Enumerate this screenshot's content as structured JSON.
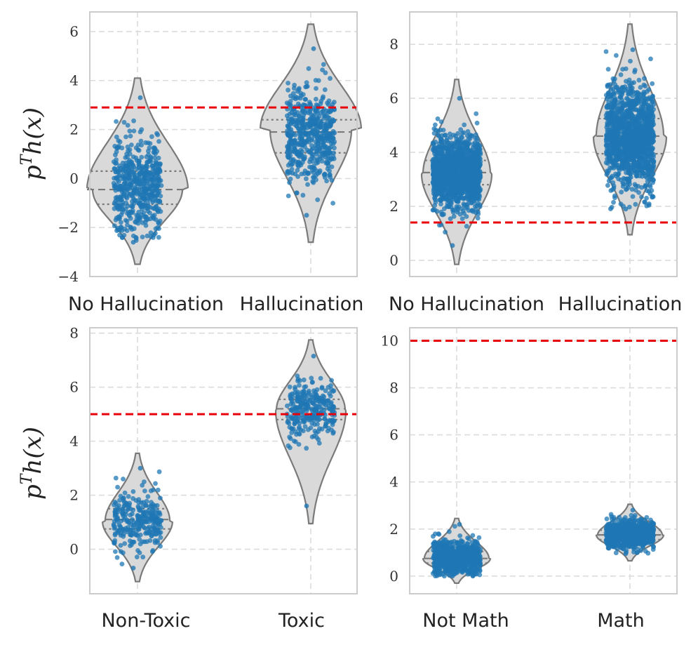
{
  "figure": {
    "layout": "2x2 grid of violin plots with jittered points"
  },
  "colors": {
    "points": "#1f77b4",
    "violin_fill": "#d9d9d9",
    "violin_edge": "#7a7a7a",
    "threshold": "#e8000b",
    "grid": "#dcdcdc",
    "frame": "#cccccc"
  },
  "chart_data": [
    {
      "type": "violin",
      "panel": "top-left",
      "title": "",
      "ylabel": "p^T h(x)",
      "ylabel_base": "p",
      "ylabel_sup": "T",
      "ylabel_func": "h(x)",
      "ylim": [
        -4,
        6.8
      ],
      "yticks": [
        -4,
        -2,
        0,
        2,
        4,
        6
      ],
      "ytick_labels": [
        "−4",
        "−2",
        "0",
        "2",
        "4",
        "6"
      ],
      "grid": true,
      "categories": [
        "No Hallucination",
        "Hallucination"
      ],
      "threshold": 2.9,
      "series": [
        {
          "name": "No Hallucination",
          "min": -3.5,
          "max": 4.1,
          "q1": -1.05,
          "median": -0.45,
          "q3": 0.3,
          "mode": -0.45,
          "points_min": -2.6,
          "points_max": 3.3,
          "n_points": 520
        },
        {
          "name": "Hallucination",
          "min": -2.6,
          "max": 6.3,
          "q1": 1.05,
          "median": 1.9,
          "q3": 2.4,
          "mode": 2.0,
          "points_min": -1.5,
          "points_max": 5.3,
          "n_points": 520
        }
      ]
    },
    {
      "type": "violin",
      "panel": "top-right",
      "title": "",
      "ylabel": "",
      "ylim": [
        -0.6,
        9.2
      ],
      "yticks": [
        0,
        2,
        4,
        6,
        8
      ],
      "ytick_labels": [
        "0",
        "2",
        "4",
        "6",
        "8"
      ],
      "grid": true,
      "categories": [
        "No Hallucination",
        "Hallucination"
      ],
      "threshold": 1.4,
      "series": [
        {
          "name": "No Hallucination",
          "min": -0.15,
          "max": 6.7,
          "q1": 2.8,
          "median": 3.25,
          "q3": 3.7,
          "mode": 3.2,
          "points_min": 0.55,
          "points_max": 6.0,
          "n_points": 1300
        },
        {
          "name": "Hallucination",
          "min": 0.95,
          "max": 8.75,
          "q1": 3.95,
          "median": 4.6,
          "q3": 5.25,
          "mode": 4.6,
          "points_min": 1.9,
          "points_max": 7.8,
          "n_points": 1300
        }
      ]
    },
    {
      "type": "violin",
      "panel": "bottom-left",
      "title": "",
      "ylabel": "p^T h(x)",
      "ylabel_base": "p",
      "ylabel_sup": "T",
      "ylabel_func": "h(x)",
      "ylim": [
        -1.65,
        8.2
      ],
      "yticks": [
        0,
        2,
        4,
        6,
        8
      ],
      "ytick_labels": [
        "0",
        "2",
        "4",
        "6",
        "8"
      ],
      "grid": true,
      "categories": [
        "Non-Toxic",
        "Toxic"
      ],
      "threshold": 5.0,
      "series": [
        {
          "name": "Non-Toxic",
          "min": -1.2,
          "max": 3.55,
          "q1": 0.75,
          "median": 1.1,
          "q3": 1.5,
          "mode": 1.05,
          "points_min": -0.7,
          "points_max": 3.0,
          "n_points": 280
        },
        {
          "name": "Toxic",
          "min": 0.95,
          "max": 7.75,
          "q1": 4.8,
          "median": 5.2,
          "q3": 5.55,
          "mode": 5.15,
          "points_min": 1.6,
          "points_max": 7.15,
          "n_points": 280
        }
      ]
    },
    {
      "type": "violin",
      "panel": "bottom-right",
      "title": "",
      "ylabel": "",
      "ylim": [
        -0.75,
        10.55
      ],
      "yticks": [
        0,
        2,
        4,
        6,
        8,
        10
      ],
      "ytick_labels": [
        "0",
        "2",
        "4",
        "6",
        "8",
        "10"
      ],
      "grid": true,
      "categories": [
        "Not Math",
        "Math"
      ],
      "threshold": 10.0,
      "series": [
        {
          "name": "Not Math",
          "min": -0.3,
          "max": 2.45,
          "q1": 0.55,
          "median": 0.75,
          "q3": 1.05,
          "mode": 0.75,
          "points_min": 0.0,
          "points_max": 2.2,
          "n_points": 800
        },
        {
          "name": "Math",
          "min": 0.65,
          "max": 3.05,
          "q1": 1.55,
          "median": 1.75,
          "q3": 1.95,
          "mode": 1.75,
          "points_min": 0.95,
          "points_max": 2.8,
          "n_points": 800
        }
      ]
    }
  ]
}
